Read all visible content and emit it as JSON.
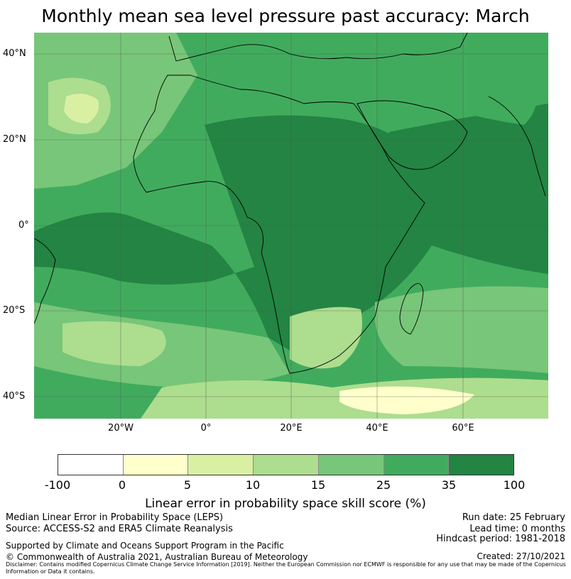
{
  "title": "Monthly mean sea level pressure past accuracy: March",
  "map": {
    "lat_labels": [
      "40°N",
      "20°N",
      "0°",
      "20°S",
      "40°S"
    ],
    "lon_labels": [
      "20°W",
      "0°",
      "20°E",
      "40°E",
      "60°E"
    ],
    "colors": {
      "c0": "#ffffff",
      "c1": "#ffffcc",
      "c2": "#d9f0a3",
      "c3": "#addd8e",
      "c4": "#78c679",
      "c5": "#41ab5d",
      "c6": "#238443",
      "coast": "#000000",
      "grid": "#555555"
    }
  },
  "colorbar": {
    "ticks": [
      "-100",
      "0",
      "5",
      "10",
      "15",
      "25",
      "35",
      "100"
    ],
    "colors": [
      "#ffffff",
      "#ffffcc",
      "#d9f0a3",
      "#addd8e",
      "#78c679",
      "#41ab5d",
      "#238443"
    ],
    "label": "Linear error in probability space skill score (%)"
  },
  "info": {
    "line1": "Median Linear Error in Probability Space (LEPS)",
    "line2": "Source: ACCESS-S2 and ERA5 Climate Reanalysis",
    "run_date": "Run date: 25 February",
    "lead_time": "Lead time: 0 months",
    "hindcast": "Hindcast period: 1981-2018",
    "support": "Supported by Climate and Oceans Support Program in the Pacific",
    "copyright": "© Commonwealth of Australia 2021, Australian Bureau of Meteorology",
    "created": "Created: 27/10/2021",
    "disclaimer": "Disclaimer: Contains modified Copernicus Climate Change Service Information [2019]. Neither the European Commission nor ECMWF is responsible for any use that may be made of the Copernicus Information or Data it contains."
  }
}
